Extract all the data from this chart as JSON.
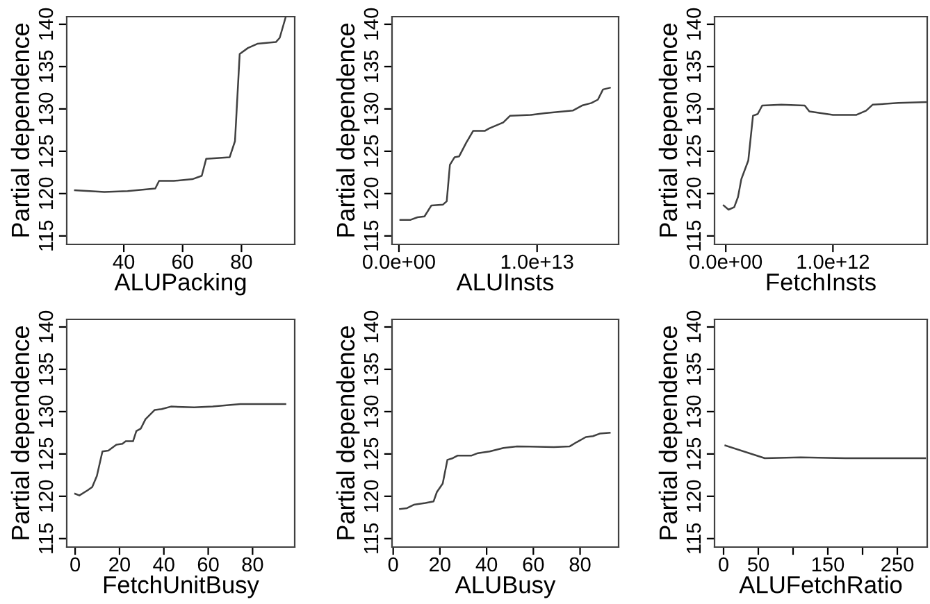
{
  "chart_data": [
    {
      "type": "line",
      "xlabel": "ALUPacking",
      "ylabel": "Partial dependence",
      "xlim": [
        20.6,
        98.1
      ],
      "ylim": [
        114,
        140.9
      ],
      "xticks": [
        40,
        60,
        80
      ],
      "yticks": [
        115,
        120,
        125,
        130,
        135,
        140
      ],
      "series": [
        {
          "color": "#404040",
          "x": [
            23.4,
            33.4,
            41.3,
            44.4,
            47.6,
            50.7,
            52,
            57,
            63.3,
            66.5,
            68,
            76,
            77.8,
            79.4,
            82.2,
            85.4,
            91.7,
            93,
            95
          ],
          "values": [
            120.4,
            120.2,
            120.3,
            120.4,
            120.5,
            120.6,
            121.5,
            121.5,
            121.7,
            122.1,
            124.1,
            124.3,
            126.2,
            136.5,
            137.2,
            137.7,
            137.9,
            138.4,
            140.8
          ]
        }
      ]
    },
    {
      "type": "line",
      "xlabel": "ALUInsts",
      "ylabel": "Partial dependence",
      "xlim": [
        -500000000000.0,
        15900000000000.0
      ],
      "ylim": [
        114,
        140.9
      ],
      "xticks": [
        {
          "value": 0,
          "label": "0.0e+00"
        },
        {
          "value": 10000000000000.0,
          "label": "1.0e+13"
        }
      ],
      "yticks": [
        115,
        120,
        125,
        130,
        135,
        140
      ],
      "series": [
        {
          "color": "#404040",
          "x": [
            100000000000.0,
            840000000000.0,
            1340000000000.0,
            1850000000000.0,
            2350000000000.0,
            3190000000000.0,
            3460000000000.0,
            3690000000000.0,
            4030000000000.0,
            4360000000000.0,
            4870000000000.0,
            5370000000000.0,
            6210000000000.0,
            6540000000000.0,
            7550000000000.0,
            8050000000000.0,
            9560000000000.0,
            10570000000000.0,
            11900000000000.0,
            12580000000000.0,
            13250000000000.0,
            13930000000000.0,
            14400000000000.0,
            14770000000000.0,
            15270000000000.0
          ],
          "values": [
            116.9,
            116.9,
            117.2,
            117.3,
            118.6,
            118.7,
            119.1,
            123.4,
            124.3,
            124.4,
            126,
            127.4,
            127.4,
            127.7,
            128.4,
            129.2,
            129.3,
            129.5,
            129.7,
            129.8,
            130.4,
            130.7,
            131.1,
            132.3,
            132.5
          ]
        }
      ]
    },
    {
      "type": "line",
      "xlabel": "FetchInsts",
      "ylabel": "Partial dependence",
      "xlim": [
        -105000000000.0,
        1880000000000.0
      ],
      "ylim": [
        114,
        140.9
      ],
      "xticks": [
        {
          "value": 0,
          "label": "0.0e+00"
        },
        {
          "value": 1000000000000.0,
          "label": "1.0e+12"
        }
      ],
      "yticks": [
        115,
        120,
        125,
        130,
        135,
        140
      ],
      "series": [
        {
          "color": "#404040",
          "x": [
            -20000000000.0,
            26000000000.0,
            79000000000.0,
            114000000000.0,
            145000000000.0,
            210000000000.0,
            254000000000.0,
            298000000000.0,
            340000000000.0,
            518000000000.0,
            737000000000.0,
            780000000000.0,
            1000000000000.0,
            1220000000000.0,
            1310000000000.0,
            1370000000000.0,
            1610000000000.0,
            1870000000000.0
          ],
          "values": [
            118.6,
            118.1,
            118.4,
            119.6,
            121.7,
            123.9,
            129.2,
            129.4,
            130.4,
            130.5,
            130.4,
            129.7,
            129.3,
            129.3,
            129.8,
            130.5,
            130.7,
            130.8
          ]
        }
      ]
    },
    {
      "type": "line",
      "xlabel": "FetchUnitBusy",
      "ylabel": "Partial dependence",
      "xlim": [
        -3.8,
        99
      ],
      "ylim": [
        114,
        140.9
      ],
      "xticks": [
        0,
        20,
        40,
        60,
        80
      ],
      "yticks": [
        115,
        120,
        125,
        130,
        135,
        140
      ],
      "series": [
        {
          "color": "#404040",
          "x": [
            0,
            1.9,
            5.6,
            7.7,
            9.8,
            12.3,
            15,
            18.6,
            21.3,
            22.8,
            26.1,
            27.6,
            29.6,
            31.7,
            35.9,
            39,
            43.2,
            53.7,
            62,
            74.5,
            94.8
          ],
          "values": [
            120.3,
            120.1,
            120.7,
            121.1,
            122.4,
            125.3,
            125.4,
            126.1,
            126.2,
            126.5,
            126.5,
            127.7,
            128,
            129.1,
            130.2,
            130.3,
            130.6,
            130.5,
            130.6,
            130.9,
            130.9
          ]
        }
      ]
    },
    {
      "type": "line",
      "xlabel": "ALUBusy",
      "ylabel": "Partial dependence",
      "xlim": [
        -0.5,
        96.5
      ],
      "ylim": [
        114,
        140.9
      ],
      "xticks": [
        0,
        20,
        40,
        60,
        80
      ],
      "yticks": [
        115,
        120,
        125,
        130,
        135,
        140
      ],
      "series": [
        {
          "color": "#404040",
          "x": [
            2.9,
            5.9,
            8.8,
            13.8,
            17.3,
            18.7,
            21.2,
            23.2,
            25.5,
            27.5,
            33.4,
            36.3,
            41.3,
            47.2,
            53,
            68.8,
            75.6,
            78.6,
            82.5,
            85.5,
            88.4,
            92.7
          ],
          "values": [
            118.5,
            118.6,
            119,
            119.2,
            119.4,
            120.5,
            121.5,
            124.3,
            124.5,
            124.8,
            124.8,
            125.1,
            125.3,
            125.7,
            125.9,
            125.8,
            125.9,
            126.4,
            127,
            127.1,
            127.4,
            127.5
          ]
        }
      ]
    },
    {
      "type": "line",
      "xlabel": "ALUFetchRatio",
      "ylabel": "Partial dependence",
      "xlim": [
        -13,
        293
      ],
      "ylim": [
        114,
        140.9
      ],
      "xticks": [
        0,
        50,
        {
          "value": 100,
          "label": null
        },
        150,
        {
          "value": 200,
          "label": null
        },
        250
      ],
      "yticks": [
        115,
        120,
        125,
        130,
        135,
        140
      ],
      "series": [
        {
          "color": "#404040",
          "x": [
            2.6,
            59.3,
            111,
            175,
            290
          ],
          "values": [
            126.0,
            124.5,
            124.6,
            124.5,
            124.5
          ]
        }
      ]
    }
  ]
}
